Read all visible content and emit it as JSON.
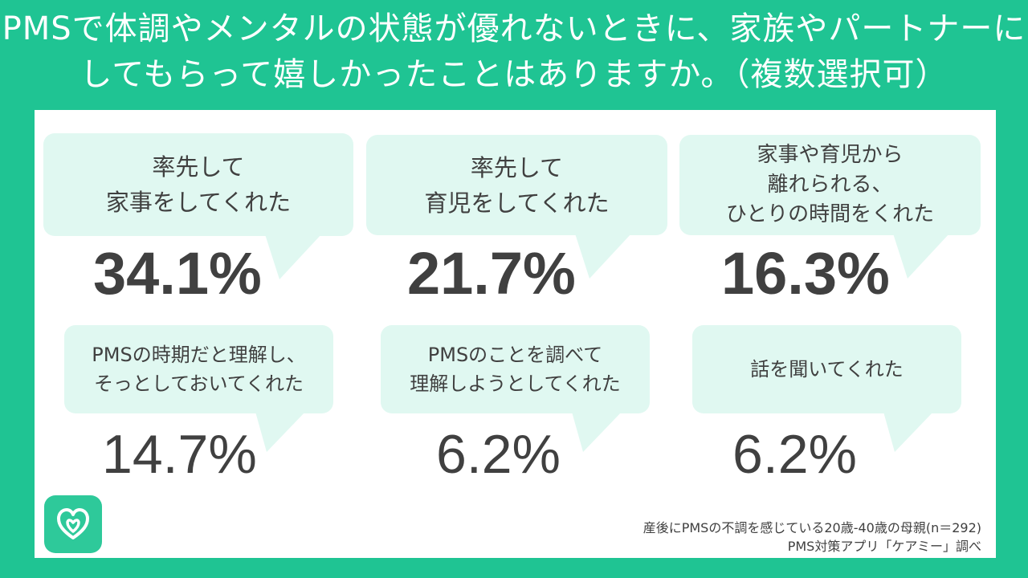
{
  "title": {
    "line1": "PMSで体調やメンタルの状態が優れないときに、家族やパートナーに",
    "line2": "してもらって嬉しかったことはありますか。（複数選択可）"
  },
  "chart_data": {
    "type": "infographic-percent",
    "items": [
      {
        "label_lines": [
          "率先して",
          "家事をしてくれた"
        ],
        "value": 34.1,
        "display": "34.1%"
      },
      {
        "label_lines": [
          "率先して",
          "育児をしてくれた"
        ],
        "value": 21.7,
        "display": "21.7%"
      },
      {
        "label_lines": [
          "家事や育児から",
          "離れられる、",
          "ひとりの時間をくれた"
        ],
        "value": 16.3,
        "display": "16.3%"
      },
      {
        "label_lines": [
          "PMSの時期だと理解し、",
          "そっとしておいてくれた"
        ],
        "value": 14.7,
        "display": "14.7%"
      },
      {
        "label_lines": [
          "PMSのことを調べて",
          "理解しようとしてくれた"
        ],
        "value": 6.2,
        "display": "6.2%"
      },
      {
        "label_lines": [
          "話を聞いてくれた"
        ],
        "value": 6.2,
        "display": "6.2%"
      }
    ]
  },
  "source": {
    "line1": "産後にPMSの不調を感じている20歳-40歳の母親(n＝292)",
    "line2": "PMS対策アプリ「ケアミー」調べ"
  },
  "colors": {
    "background": "#1fc493",
    "bubble": "#e0f8f1",
    "text": "#404040",
    "logo": "#2ec99a"
  },
  "logo": {
    "icon": "heart-drop-icon"
  }
}
